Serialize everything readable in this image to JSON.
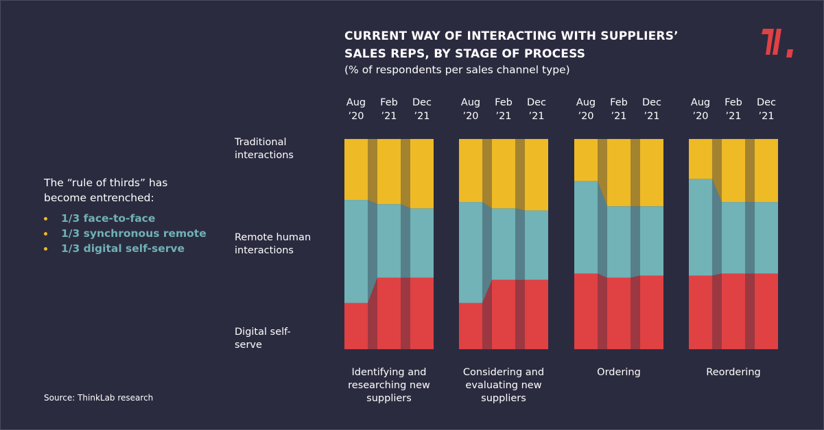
{
  "title_line1": "CURRENT WAY OF INTERACTING WITH SUPPLIERS’",
  "title_line2": "SALES REPS, BY STAGE OF PROCESS",
  "subtitle": "(% of respondents per sales channel type)",
  "sidebar": {
    "heading": "The “rule of thirds” has become entrenched:",
    "bullets": [
      "1/3 face-to-face",
      "1/3 synchronous remote",
      "1/3 digital self-serve"
    ]
  },
  "source": "Source: ThinkLab research",
  "row_labels": {
    "traditional": "Traditional interactions",
    "remote": "Remote human interactions",
    "digital": "Digital self-serve"
  },
  "colors": {
    "background": "#2b2b40",
    "traditional": "#eeba25",
    "remote": "#71b3b7",
    "digital": "#e04143",
    "accent_text": "#6fb2b6",
    "logo": "#e04143"
  },
  "chart_data": {
    "type": "bar",
    "stacked": true,
    "normalized_to": 100,
    "periods": [
      {
        "line1": "Aug",
        "line2": "’20"
      },
      {
        "line1": "Feb",
        "line2": "’21"
      },
      {
        "line1": "Dec",
        "line2": "’21"
      }
    ],
    "groups": [
      {
        "name": "Identifying and researching new suppliers",
        "name_lines": [
          "Identifying and",
          "researching new",
          "suppliers"
        ],
        "digital": [
          22,
          34,
          34
        ],
        "remote": [
          49,
          35,
          33
        ],
        "traditional": [
          29,
          31,
          33
        ]
      },
      {
        "name": "Considering and evaluating new suppliers",
        "name_lines": [
          "Considering and",
          "evaluating new",
          "suppliers"
        ],
        "digital": [
          22,
          33,
          33
        ],
        "remote": [
          48,
          34,
          33
        ],
        "traditional": [
          30,
          33,
          34
        ]
      },
      {
        "name": "Ordering",
        "name_lines": [
          "Ordering"
        ],
        "digital": [
          36,
          34,
          35
        ],
        "remote": [
          44,
          34,
          33
        ],
        "traditional": [
          20,
          32,
          32
        ]
      },
      {
        "name": "Reordering",
        "name_lines": [
          "Reordering"
        ],
        "digital": [
          35,
          36,
          36
        ],
        "remote": [
          46,
          34,
          34
        ],
        "traditional": [
          19,
          30,
          30
        ]
      }
    ]
  }
}
